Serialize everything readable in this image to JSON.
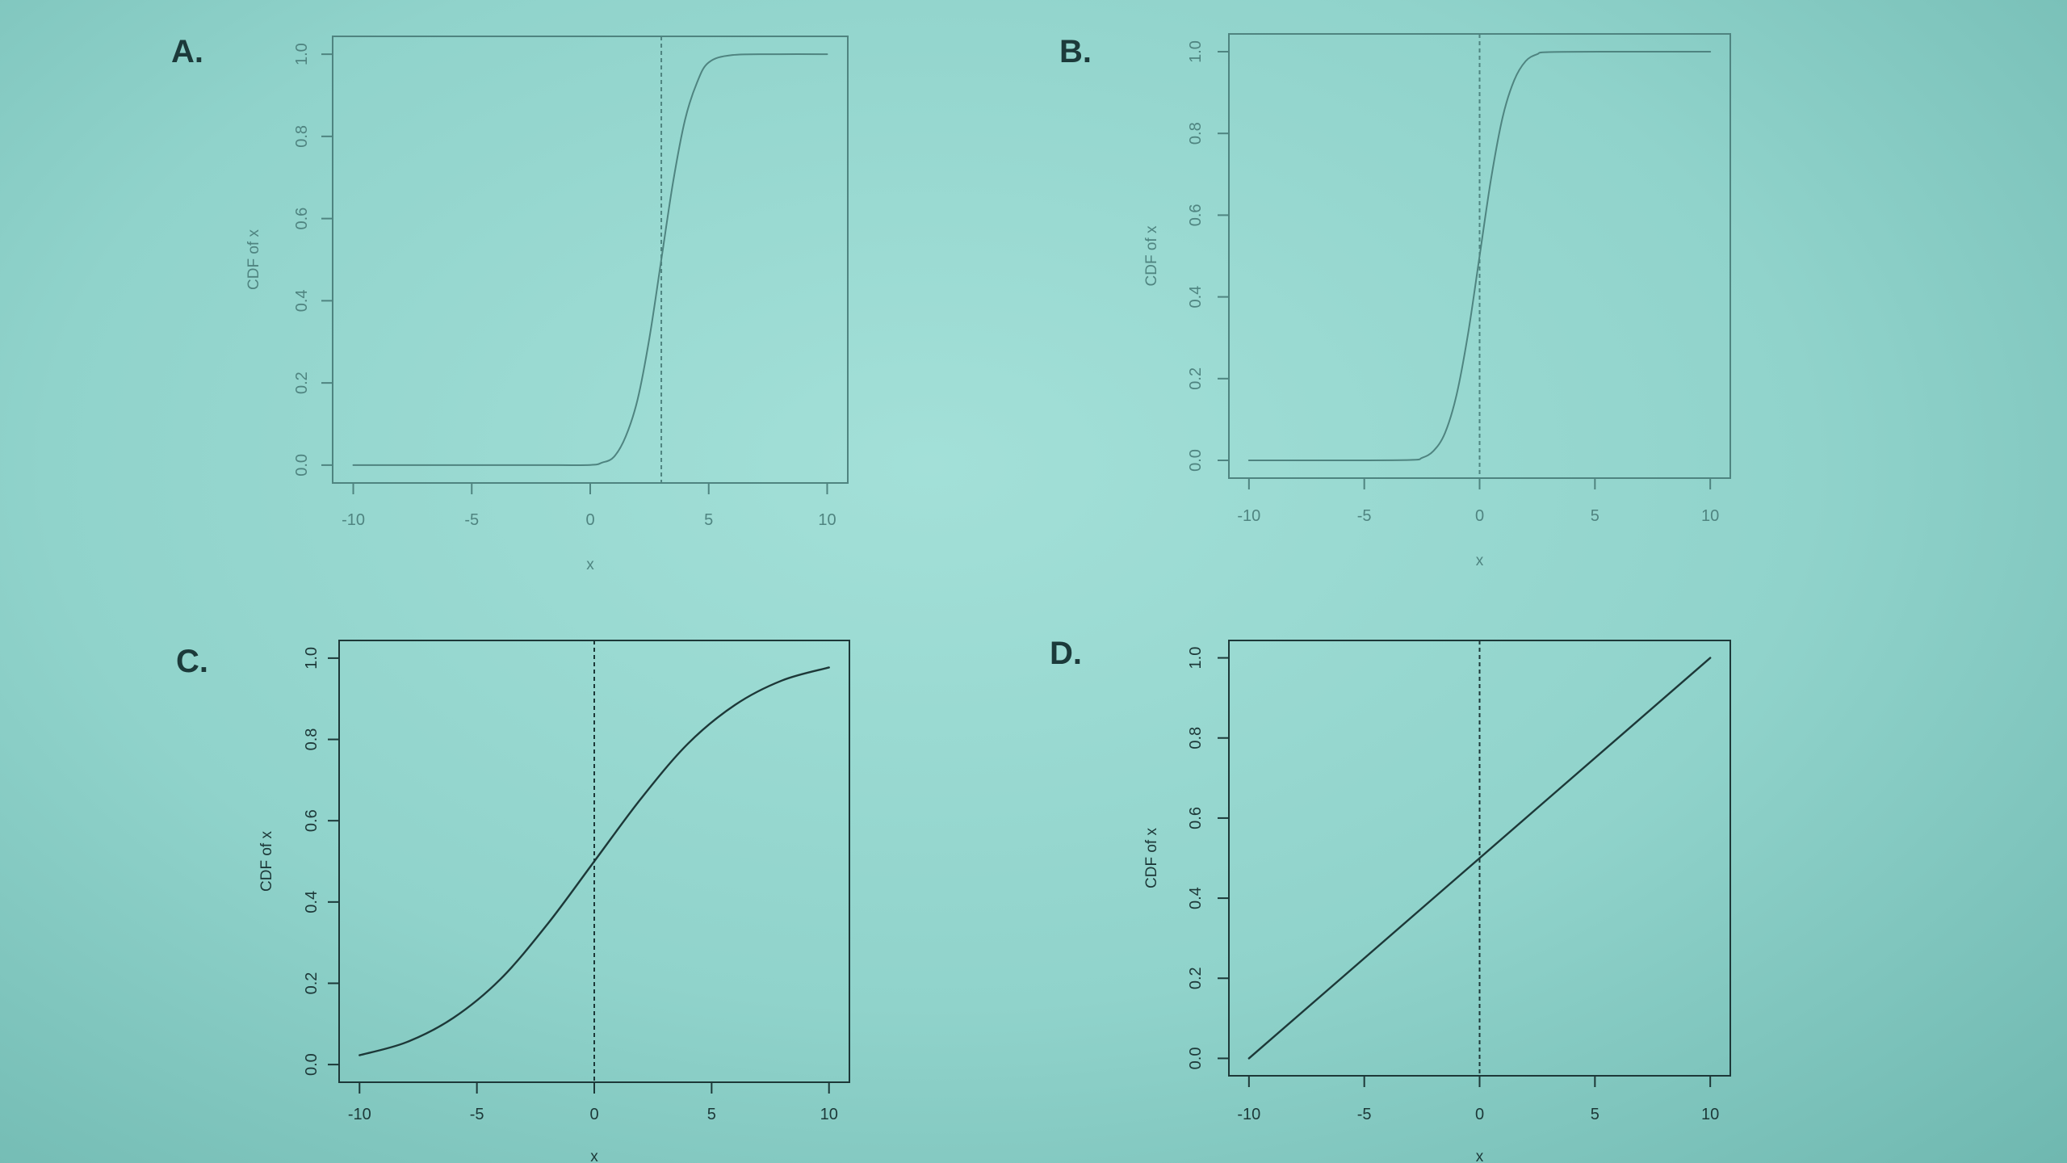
{
  "colors": {
    "ink_dark": "#1d3838",
    "ink_faint": "#4f8480",
    "background": "#97d8d0"
  },
  "chart_data": [
    {
      "panel_label": "A.",
      "type": "line",
      "xlabel": "x",
      "ylabel": "CDF of x",
      "xlim": [
        -10,
        10
      ],
      "ylim": [
        0,
        1
      ],
      "xticks": [
        "-10",
        "-5",
        "0",
        "5",
        "10"
      ],
      "yticks": [
        "0.0",
        "0.2",
        "0.4",
        "0.6",
        "0.8",
        "1.0"
      ],
      "vline_x": 3,
      "series": [
        {
          "x": [
            -10,
            -8,
            -6,
            -4,
            -2,
            0,
            0.5,
            1,
            1.5,
            2,
            2.5,
            3,
            3.5,
            4,
            4.5,
            5,
            6,
            8,
            10
          ],
          "y": [
            0,
            0,
            0,
            0,
            0,
            0.0003,
            0.006,
            0.02,
            0.07,
            0.16,
            0.31,
            0.5,
            0.69,
            0.84,
            0.93,
            0.98,
            0.998,
            1,
            1
          ]
        }
      ]
    },
    {
      "panel_label": "B.",
      "type": "line",
      "xlabel": "x",
      "ylabel": "CDF of x",
      "xlim": [
        -10,
        10
      ],
      "ylim": [
        0,
        1
      ],
      "xticks": [
        "-10",
        "-5",
        "0",
        "5",
        "10"
      ],
      "yticks": [
        "0.0",
        "0.2",
        "0.4",
        "0.6",
        "0.8",
        "1.0"
      ],
      "vline_x": 0,
      "series": [
        {
          "x": [
            -10,
            -6,
            -3,
            -2.5,
            -2,
            -1.5,
            -1,
            -0.5,
            0,
            0.5,
            1,
            1.5,
            2,
            2.5,
            3,
            6,
            10
          ],
          "y": [
            0,
            0,
            0.001,
            0.006,
            0.023,
            0.067,
            0.16,
            0.31,
            0.5,
            0.69,
            0.84,
            0.93,
            0.977,
            0.994,
            0.999,
            1,
            1
          ]
        }
      ]
    },
    {
      "panel_label": "C.",
      "type": "line",
      "xlabel": "x",
      "ylabel": "CDF of x",
      "xlim": [
        -10,
        10
      ],
      "ylim": [
        0,
        1
      ],
      "xticks": [
        "-10",
        "-5",
        "0",
        "5",
        "10"
      ],
      "yticks": [
        "0.0",
        "0.2",
        "0.4",
        "0.6",
        "0.8",
        "1.0"
      ],
      "vline_x": 0,
      "series": [
        {
          "x": [
            -10,
            -8,
            -6,
            -4,
            -2,
            0,
            2,
            4,
            6,
            8,
            10
          ],
          "y": [
            0.023,
            0.055,
            0.115,
            0.21,
            0.345,
            0.5,
            0.655,
            0.79,
            0.885,
            0.945,
            0.977
          ]
        }
      ]
    },
    {
      "panel_label": "D.",
      "type": "line",
      "xlabel": "x",
      "ylabel": "CDF of x",
      "xlim": [
        -10,
        10
      ],
      "ylim": [
        0,
        1
      ],
      "xticks": [
        "-10",
        "-5",
        "0",
        "5",
        "10"
      ],
      "yticks": [
        "0.0",
        "0.2",
        "0.4",
        "0.6",
        "0.8",
        "1.0"
      ],
      "vline_x": 0,
      "series": [
        {
          "x": [
            -10,
            10
          ],
          "y": [
            0,
            1
          ]
        }
      ]
    }
  ]
}
